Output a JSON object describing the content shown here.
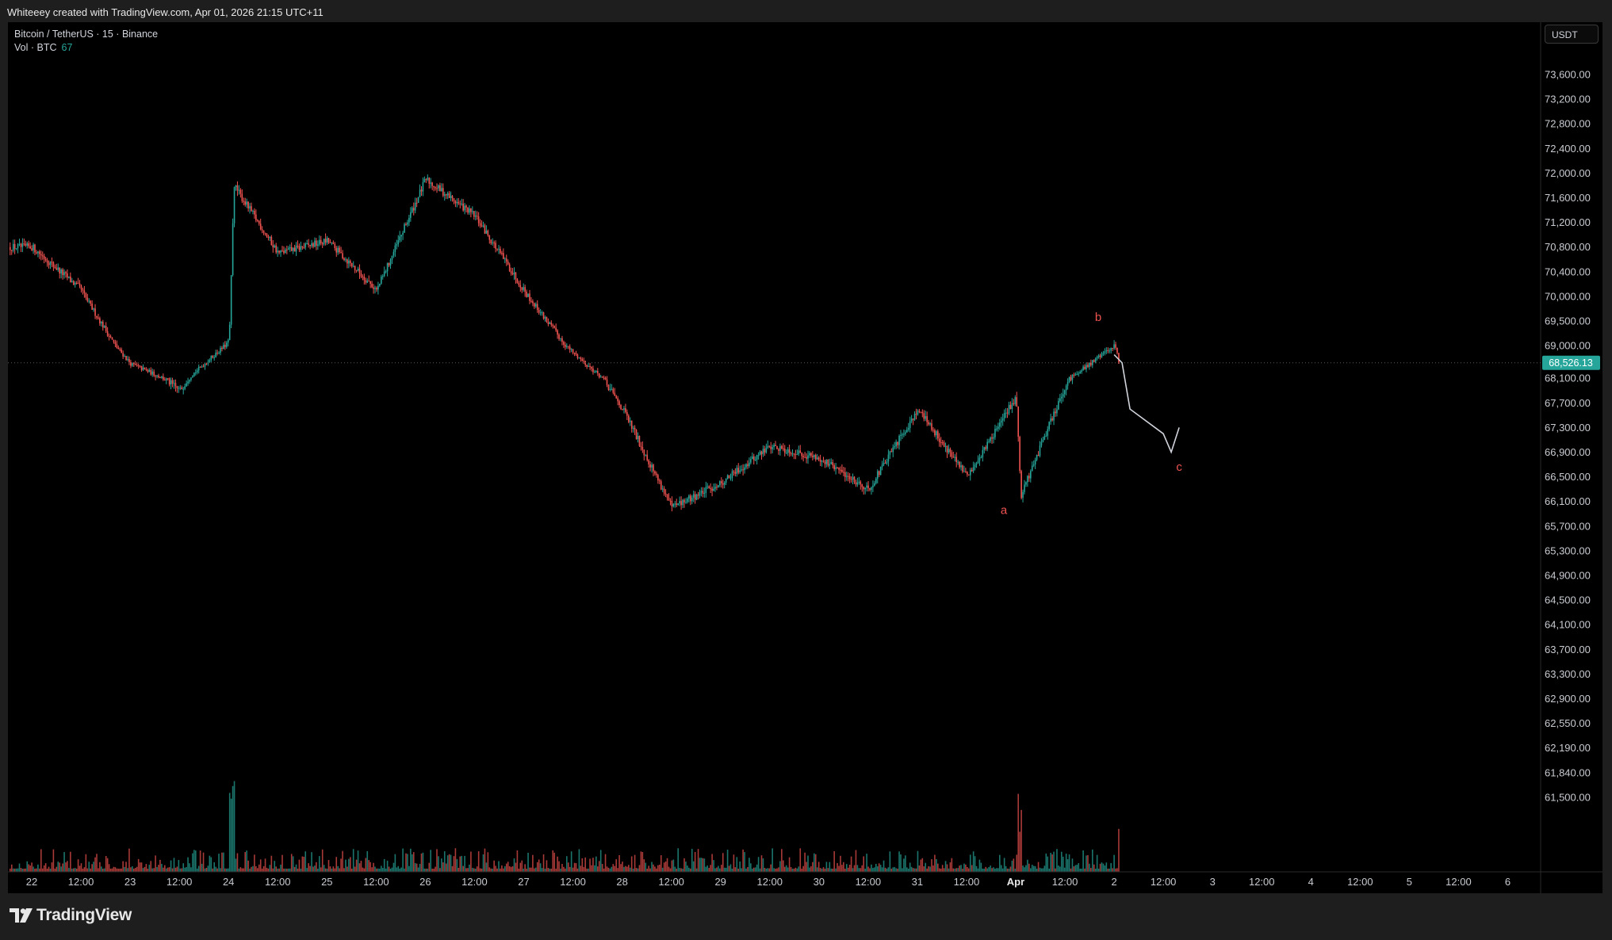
{
  "header": {
    "credit": "Whiteeey created with TradingView.com, Apr 01, 2026 21:15 UTC+11"
  },
  "legend": {
    "symbol": "Bitcoin / TetherUS · 15 · Binance",
    "volume_label": "Vol · BTC",
    "volume_value": "67"
  },
  "price_scale": {
    "currency": "USDT"
  },
  "branding": {
    "logo_text": "TradingView",
    "logo_icon": "tradingview-logo-icon"
  },
  "colors": {
    "background": "#000000",
    "up": "#26a69a",
    "down": "#ef5350",
    "last_price_tag": "#26a69a",
    "annotation": "#ef5350",
    "projection": "#d1d4dc"
  },
  "chart_data": {
    "type": "candlestick",
    "symbol": "BTCUSDT",
    "interval": "15",
    "exchange": "Binance",
    "price_axis_ticks": [
      "73,600.00",
      "73,200.00",
      "72,800.00",
      "72,400.00",
      "72,000.00",
      "71,600.00",
      "71,200.00",
      "70,800.00",
      "70,400.00",
      "70,000.00",
      "69,500.00",
      "69,000.00",
      "68,100.00",
      "67,700.00",
      "67,300.00",
      "66,900.00",
      "66,500.00",
      "66,100.00",
      "65,700.00",
      "65,300.00",
      "64,900.00",
      "64,500.00",
      "64,100.00",
      "63,700.00",
      "63,300.00",
      "62,900.00",
      "62,550.00",
      "62,190.00",
      "61,840.00",
      "61,500.00"
    ],
    "time_axis_ticks": [
      "22",
      "12:00",
      "23",
      "12:00",
      "24",
      "12:00",
      "25",
      "12:00",
      "26",
      "12:00",
      "27",
      "12:00",
      "28",
      "12:00",
      "29",
      "12:00",
      "30",
      "12:00",
      "31",
      "12:00",
      "Apr",
      "12:00",
      "2",
      "12:00",
      "3",
      "12:00",
      "4",
      "12:00",
      "5",
      "12:00",
      "6"
    ],
    "last_price": "68,526.13",
    "price_path": [
      [
        "22",
        70800
      ],
      [
        "22 12:00",
        70100
      ],
      [
        "23",
        68500
      ],
      [
        "23 12:00",
        67900
      ],
      [
        "24",
        69100
      ],
      [
        "24",
        71800
      ],
      [
        "24 12:00",
        70700
      ],
      [
        "25",
        70900
      ],
      [
        "25 12:00",
        70100
      ],
      [
        "26",
        71900
      ],
      [
        "26 12:00",
        71300
      ],
      [
        "27",
        70100
      ],
      [
        "27 12:00",
        68800
      ],
      [
        "28",
        67600
      ],
      [
        "28 12:00",
        66000
      ],
      [
        "29",
        66400
      ],
      [
        "29 12:00",
        67000
      ],
      [
        "30",
        66800
      ],
      [
        "30 12:00",
        66300
      ],
      [
        "31",
        67600
      ],
      [
        "31 12:00",
        66500
      ],
      [
        "Apr",
        67800
      ],
      [
        "Apr",
        66200
      ],
      [
        "Apr 12:00",
        68000
      ],
      [
        "2",
        69000
      ],
      [
        "2",
        68526.13
      ]
    ],
    "annotations": [
      {
        "text": "a",
        "time": "Apr",
        "price": 65900
      },
      {
        "text": "b",
        "time": "2",
        "price": 69500
      },
      {
        "text": "c",
        "time": "2 12:00",
        "price": 66600
      }
    ],
    "projection_path": [
      [
        "2",
        68750
      ],
      [
        "2",
        68526
      ],
      [
        "2",
        67600
      ],
      [
        "2 12:00",
        67200
      ],
      [
        "2 12:00",
        66900
      ],
      [
        "2 12:00",
        67300
      ]
    ],
    "volume_indicator": {
      "label": "Vol · BTC",
      "value": 67
    }
  }
}
